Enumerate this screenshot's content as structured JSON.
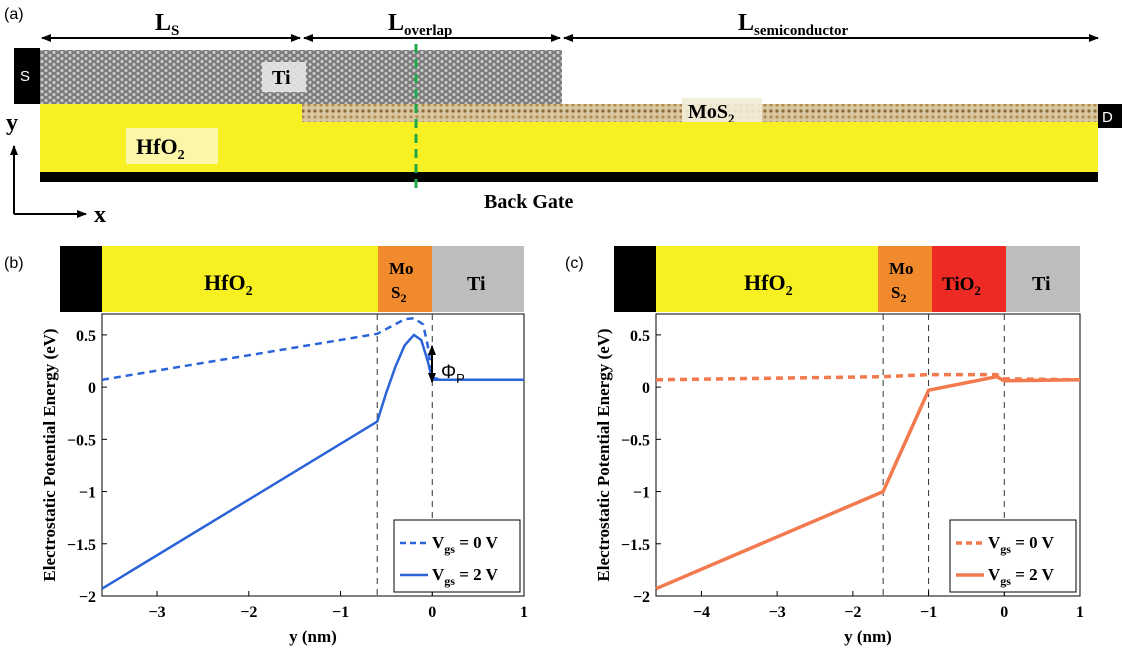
{
  "panel_a": {
    "panel_label": "(a)",
    "Ls_label": "L",
    "Ls_sub": "S",
    "Loverlap_label": "L",
    "Loverlap_sub": "overlap",
    "Lsemi_label": "L",
    "Lsemi_sub": "semiconductor",
    "source_label": "S",
    "drain_label": "D",
    "ti_label": "Ti",
    "mos2_label": "MoS",
    "mos2_sub": "2",
    "hfo2_label": "HfO",
    "hfo2_sub": "2",
    "back_gate_label": "Back Gate",
    "axis_y": "y",
    "axis_x": "x",
    "colors": {
      "hfo2": "#f7f022",
      "gate": "#000000",
      "ti": "#9a9a9a",
      "mos2": "#c9b48a",
      "cut_line": "#1fa84a"
    }
  },
  "panel_b": {
    "panel_label": "(b)",
    "layers": {
      "hfo2": "HfO",
      "hfo2_sub": "2",
      "mos2_top": "Mo",
      "mos2_bottom": "S",
      "mos2_sub": "2",
      "ti": "Ti"
    },
    "phi_label": "Φ",
    "phi_sub": "P",
    "colors": {
      "black": "#000000",
      "hfo2": "#f7f022",
      "mos2": "#f08a2c",
      "ti": "#bdbdbd",
      "series": "#2b63d9"
    }
  },
  "panel_c": {
    "panel_label": "(c)",
    "layers": {
      "hfo2": "HfO",
      "hfo2_sub": "2",
      "mos2_top": "Mo",
      "mos2_bottom": "S",
      "mos2_sub": "2",
      "tio2": "TiO",
      "tio2_sub": "2",
      "ti": "Ti"
    },
    "colors": {
      "black": "#000000",
      "hfo2": "#f7f022",
      "mos2": "#f08a2c",
      "tio2": "#ee2a24",
      "ti": "#bdbdbd",
      "series": "#f27a4e"
    }
  },
  "chart_data": [
    {
      "type": "line",
      "panel": "b",
      "xlabel": "y (nm)",
      "ylabel": "Electrostatic Potential Energy (eV)",
      "xlim": [
        -3.6,
        1
      ],
      "ylim": [
        -2,
        0.7
      ],
      "xticks": [
        -3,
        -2,
        -1,
        0,
        1
      ],
      "yticks": [
        -2,
        -1.5,
        -1,
        -0.5,
        0,
        0.5
      ],
      "xtick_labels": [
        "−3",
        "−2",
        "−1",
        "0",
        "1"
      ],
      "ytick_labels": [
        "−2",
        "−1.5",
        "−1",
        "−0.5",
        "0",
        "0.5"
      ],
      "boundaries": [
        -0.6,
        0
      ],
      "legend_position": "bottom-right",
      "series": [
        {
          "name": "V",
          "name_sub": "gs",
          "name_rest": " = 0 V",
          "style": "dashed",
          "x": [
            -3.6,
            -0.6,
            -0.45,
            -0.3,
            -0.2,
            -0.1,
            -0.05,
            0,
            0.1,
            1
          ],
          "y": [
            0.07,
            0.51,
            0.58,
            0.65,
            0.66,
            0.6,
            0.4,
            0.09,
            0.07,
            0.07
          ]
        },
        {
          "name": "V",
          "name_sub": "gs",
          "name_rest": " = 2 V",
          "style": "solid",
          "x": [
            -3.6,
            -0.6,
            -0.5,
            -0.4,
            -0.3,
            -0.2,
            -0.12,
            -0.05,
            0,
            0.1,
            1
          ],
          "y": [
            -1.93,
            -0.33,
            -0.05,
            0.2,
            0.4,
            0.5,
            0.45,
            0.25,
            0.07,
            0.07,
            0.07
          ]
        }
      ]
    },
    {
      "type": "line",
      "panel": "c",
      "xlabel": "y (nm)",
      "ylabel": "Electrostatic Potential Energy (eV)",
      "xlim": [
        -4.6,
        1
      ],
      "ylim": [
        -2,
        0.7
      ],
      "xticks": [
        -4,
        -3,
        -2,
        -1,
        0,
        1
      ],
      "yticks": [
        -2,
        -1.5,
        -1,
        -0.5,
        0,
        0.5
      ],
      "xtick_labels": [
        "−4",
        "−3",
        "−2",
        "−1",
        "0",
        "1"
      ],
      "ytick_labels": [
        "−2",
        "−1.5",
        "−1",
        "−0.5",
        "0",
        "0.5"
      ],
      "boundaries": [
        -1.6,
        -1,
        0
      ],
      "legend_position": "bottom-right",
      "series": [
        {
          "name": "V",
          "name_sub": "gs",
          "name_rest": " = 0 V",
          "style": "dashed",
          "x": [
            -4.6,
            -1.6,
            -1,
            -0.1,
            0,
            1
          ],
          "y": [
            0.07,
            0.1,
            0.12,
            0.12,
            0.08,
            0.07
          ]
        },
        {
          "name": "V",
          "name_sub": "gs",
          "name_rest": " = 2 V",
          "style": "solid",
          "x": [
            -4.6,
            -1.6,
            -1,
            -0.1,
            0,
            1
          ],
          "y": [
            -1.93,
            -1.0,
            -0.03,
            0.1,
            0.06,
            0.07
          ]
        }
      ]
    }
  ]
}
